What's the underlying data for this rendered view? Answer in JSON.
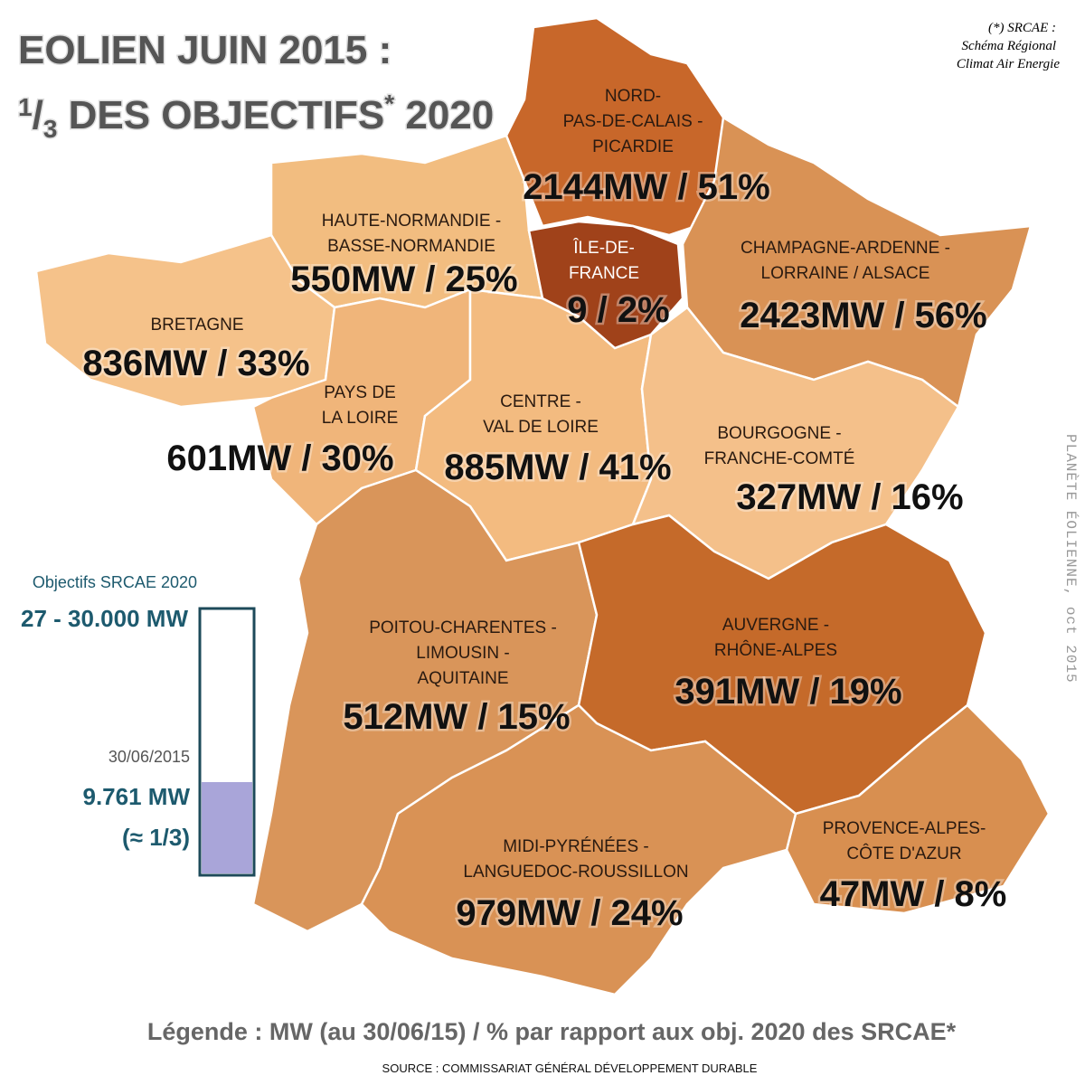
{
  "title": {
    "line1": "EOLIEN JUIN 2015 :",
    "line2_parts": [
      "1",
      "/",
      "3",
      " DES OBJECTIFS",
      "*",
      " 2020"
    ]
  },
  "footnote": {
    "lines": [
      "(*) SRCAE :",
      "Schéma Régional",
      "Climat Air Energie"
    ]
  },
  "credit": "PLANÈTE ÉOLIENNE, oct 2015",
  "regions": [
    {
      "name_lines": [
        "NORD-",
        "PAS-DE-CALAIS -",
        "PICARDIE"
      ],
      "value_label": "2144MW / 51%"
    },
    {
      "name_lines": [
        "HAUTE-NORMANDIE -",
        "BASSE-NORMANDIE"
      ],
      "value_label": "550MW / 25%"
    },
    {
      "name_lines": [
        "ÎLE-DE-",
        "FRANCE"
      ],
      "value_label": "9 / 2%"
    },
    {
      "name_lines": [
        "CHAMPAGNE-ARDENNE -",
        "LORRAINE / ALSACE"
      ],
      "value_label": "2423MW / 56%"
    },
    {
      "name_lines": [
        "BRETAGNE"
      ],
      "value_label": "836MW / 33%"
    },
    {
      "name_lines": [
        "PAYS DE",
        "LA LOIRE"
      ],
      "value_label": "601MW / 30%"
    },
    {
      "name_lines": [
        "CENTRE -",
        "VAL DE LOIRE"
      ],
      "value_label": "885MW / 41%"
    },
    {
      "name_lines": [
        "BOURGOGNE -",
        "FRANCHE-COMTÉ"
      ],
      "value_label": "327MW / 16%"
    },
    {
      "name_lines": [
        "POITOU-CHARENTES -",
        "LIMOUSIN -",
        "AQUITAINE"
      ],
      "value_label": "512MW / 15%"
    },
    {
      "name_lines": [
        "AUVERGNE -",
        "RHÔNE-ALPES"
      ],
      "value_label": "391MW / 19%"
    },
    {
      "name_lines": [
        "PROVENCE-ALPES-",
        "CÔTE D'AZUR"
      ],
      "value_label": "47MW / 8%"
    },
    {
      "name_lines": [
        "MIDI-PYRÉNÉES -",
        "LANGUEDOC-ROUSSILLON"
      ],
      "value_label": "979MW / 24%"
    }
  ],
  "gauge": {
    "goal_title": "Objectifs SRCAE 2020",
    "goal_value": "27 - 30.000 MW",
    "date": "30/06/2015",
    "current_value": "9.761 MW",
    "ratio": "(≈ 1/3)"
  },
  "legend": "Légende : MW (au 30/06/15) / % par rapport aux obj. 2020 des SRCAE*",
  "source": "SOURCE : COMMISSARIAT GÉNÉRAL DÉVELOPPEMENT DURABLE"
}
